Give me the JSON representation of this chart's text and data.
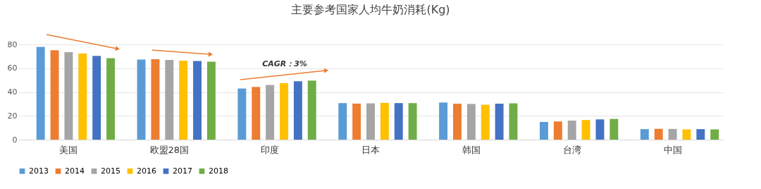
{
  "chart_data": {
    "type": "bar",
    "title": "主要参考国家人均牛奶消耗(Kg)",
    "categories": [
      "美国",
      "欧盟28国",
      "印度",
      "日本",
      "韩国",
      "台湾",
      "中国"
    ],
    "series": [
      {
        "name": "2013",
        "color": "#5b9bd5",
        "values": [
          78,
          67.3,
          42.9,
          30.7,
          31.2,
          14.9,
          8.8
        ]
      },
      {
        "name": "2014",
        "color": "#ed7d31",
        "values": [
          75.1,
          67.5,
          44.3,
          30.3,
          30.2,
          15.3,
          9.1
        ]
      },
      {
        "name": "2015",
        "color": "#a5a5a5",
        "values": [
          73.5,
          66.9,
          45.9,
          30.5,
          30,
          16,
          9
        ]
      },
      {
        "name": "2016",
        "color": "#ffc000",
        "values": [
          72.4,
          66.3,
          47.5,
          30.9,
          29.3,
          16.5,
          8.6
        ]
      },
      {
        "name": "2017",
        "color": "#4472c4",
        "values": [
          70.4,
          66.1,
          49,
          30.7,
          30.2,
          17,
          8.8
        ]
      },
      {
        "name": "2018",
        "color": "#70ad47",
        "values": [
          68.4,
          65.5,
          49.6,
          30.7,
          30.5,
          17.4,
          8.6
        ]
      }
    ],
    "ylim": [
      0,
      80
    ],
    "yticks": [
      0,
      20,
      40,
      60,
      80
    ],
    "grid": "y",
    "legend": "bottom",
    "annotations": [
      "CAGR：3%"
    ]
  }
}
